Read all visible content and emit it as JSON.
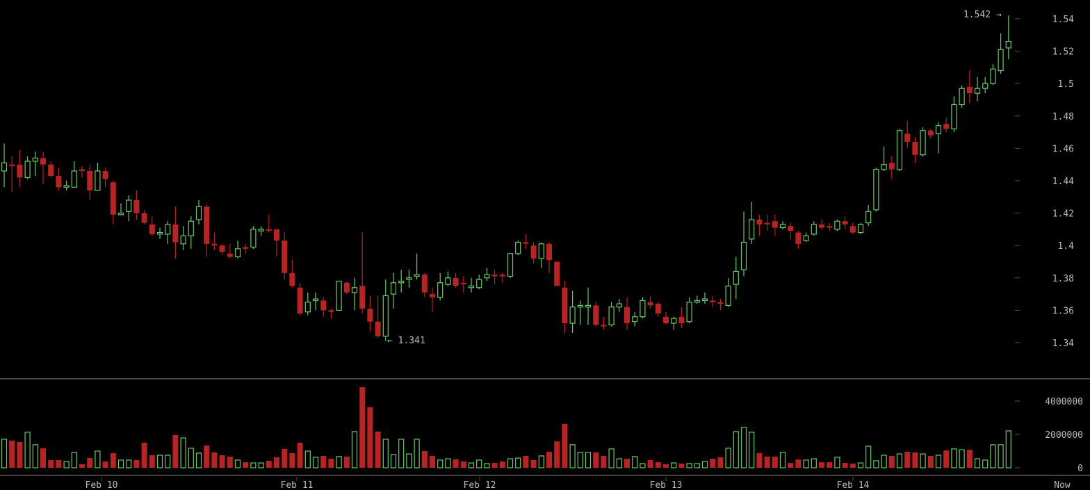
{
  "chart_data": {
    "type": "candlestick",
    "interval": "hourly",
    "x_labels": [
      "Feb 10",
      "Feb 11",
      "Feb 12",
      "Feb 13",
      "Feb 14",
      "Now"
    ],
    "price_axis": {
      "ticks": [
        "1.34",
        "1.36",
        "1.38",
        "1.4",
        "1.42",
        "1.44",
        "1.46",
        "1.48",
        "1.5",
        "1.52",
        "1.54"
      ],
      "range": [
        1.32,
        1.55
      ]
    },
    "volume_axis": {
      "ticks": [
        "0",
        "2000000",
        "4000000"
      ],
      "range": [
        0,
        5000000
      ]
    },
    "annotations": {
      "max_label": "1.542",
      "min_label": "1.341"
    },
    "colors": {
      "up": "#66cc66",
      "down": "#bb2222",
      "background": "#000000"
    },
    "ohlc": [
      [
        1.446,
        1.463,
        1.436,
        1.451
      ],
      [
        1.45,
        1.455,
        1.433,
        1.449
      ],
      [
        1.45,
        1.459,
        1.436,
        1.442
      ],
      [
        1.442,
        1.455,
        1.441,
        1.452
      ],
      [
        1.452,
        1.458,
        1.443,
        1.454
      ],
      [
        1.454,
        1.458,
        1.438,
        1.45
      ],
      [
        1.45,
        1.452,
        1.442,
        1.443
      ],
      [
        1.443,
        1.448,
        1.434,
        1.436
      ],
      [
        1.436,
        1.44,
        1.434,
        1.437
      ],
      [
        1.436,
        1.452,
        1.436,
        1.446
      ],
      [
        1.447,
        1.449,
        1.442,
        1.446
      ],
      [
        1.446,
        1.45,
        1.428,
        1.434
      ],
      [
        1.434,
        1.451,
        1.434,
        1.446
      ],
      [
        1.446,
        1.448,
        1.436,
        1.441
      ],
      [
        1.439,
        1.44,
        1.413,
        1.419
      ],
      [
        1.419,
        1.426,
        1.419,
        1.42
      ],
      [
        1.421,
        1.431,
        1.415,
        1.428
      ],
      [
        1.428,
        1.434,
        1.416,
        1.42
      ],
      [
        1.42,
        1.422,
        1.413,
        1.414
      ],
      [
        1.413,
        1.418,
        1.406,
        1.407
      ],
      [
        1.407,
        1.411,
        1.404,
        1.408
      ],
      [
        1.407,
        1.415,
        1.401,
        1.413
      ],
      [
        1.413,
        1.424,
        1.392,
        1.402
      ],
      [
        1.401,
        1.412,
        1.397,
        1.406
      ],
      [
        1.406,
        1.418,
        1.398,
        1.415
      ],
      [
        1.416,
        1.428,
        1.413,
        1.424
      ],
      [
        1.424,
        1.425,
        1.393,
        1.401
      ],
      [
        1.401,
        1.408,
        1.397,
        1.4
      ],
      [
        1.4,
        1.401,
        1.394,
        1.396
      ],
      [
        1.395,
        1.401,
        1.392,
        1.393
      ],
      [
        1.393,
        1.403,
        1.392,
        1.398
      ],
      [
        1.399,
        1.401,
        1.395,
        1.398
      ],
      [
        1.399,
        1.412,
        1.398,
        1.41
      ],
      [
        1.409,
        1.412,
        1.406,
        1.41
      ],
      [
        1.41,
        1.419,
        1.408,
        1.409
      ],
      [
        1.41,
        1.41,
        1.393,
        1.403
      ],
      [
        1.403,
        1.408,
        1.379,
        1.383
      ],
      [
        1.383,
        1.391,
        1.374,
        1.375
      ],
      [
        1.374,
        1.377,
        1.357,
        1.358
      ],
      [
        1.359,
        1.371,
        1.357,
        1.365
      ],
      [
        1.366,
        1.371,
        1.36,
        1.367
      ],
      [
        1.366,
        1.368,
        1.356,
        1.36
      ],
      [
        1.36,
        1.361,
        1.355,
        1.359
      ],
      [
        1.36,
        1.378,
        1.36,
        1.378
      ],
      [
        1.377,
        1.378,
        1.37,
        1.371
      ],
      [
        1.371,
        1.38,
        1.36,
        1.374
      ],
      [
        1.375,
        1.408,
        1.358,
        1.361
      ],
      [
        1.361,
        1.369,
        1.347,
        1.353
      ],
      [
        1.353,
        1.369,
        1.343,
        1.344
      ],
      [
        1.344,
        1.379,
        1.341,
        1.369
      ],
      [
        1.37,
        1.383,
        1.361,
        1.377
      ],
      [
        1.377,
        1.385,
        1.371,
        1.378
      ],
      [
        1.379,
        1.385,
        1.374,
        1.38
      ],
      [
        1.381,
        1.395,
        1.379,
        1.382
      ],
      [
        1.382,
        1.383,
        1.368,
        1.371
      ],
      [
        1.37,
        1.374,
        1.359,
        1.368
      ],
      [
        1.368,
        1.383,
        1.366,
        1.377
      ],
      [
        1.376,
        1.384,
        1.375,
        1.38
      ],
      [
        1.38,
        1.383,
        1.374,
        1.375
      ],
      [
        1.377,
        1.381,
        1.371,
        1.376
      ],
      [
        1.374,
        1.38,
        1.371,
        1.375
      ],
      [
        1.374,
        1.382,
        1.373,
        1.379
      ],
      [
        1.38,
        1.386,
        1.378,
        1.382
      ],
      [
        1.382,
        1.385,
        1.376,
        1.381
      ],
      [
        1.382,
        1.383,
        1.377,
        1.381
      ],
      [
        1.381,
        1.395,
        1.38,
        1.395
      ],
      [
        1.395,
        1.403,
        1.394,
        1.402
      ],
      [
        1.402,
        1.407,
        1.398,
        1.401
      ],
      [
        1.4,
        1.402,
        1.389,
        1.392
      ],
      [
        1.392,
        1.402,
        1.386,
        1.401
      ],
      [
        1.401,
        1.402,
        1.383,
        1.391
      ],
      [
        1.39,
        1.39,
        1.375,
        1.375
      ],
      [
        1.374,
        1.378,
        1.346,
        1.352
      ],
      [
        1.352,
        1.372,
        1.346,
        1.362
      ],
      [
        1.362,
        1.366,
        1.351,
        1.363
      ],
      [
        1.362,
        1.374,
        1.351,
        1.363
      ],
      [
        1.363,
        1.365,
        1.35,
        1.351
      ],
      [
        1.351,
        1.356,
        1.348,
        1.35
      ],
      [
        1.351,
        1.365,
        1.35,
        1.362
      ],
      [
        1.362,
        1.367,
        1.359,
        1.364
      ],
      [
        1.362,
        1.368,
        1.348,
        1.352
      ],
      [
        1.353,
        1.359,
        1.35,
        1.356
      ],
      [
        1.356,
        1.368,
        1.355,
        1.366
      ],
      [
        1.365,
        1.369,
        1.361,
        1.363
      ],
      [
        1.364,
        1.365,
        1.356,
        1.358
      ],
      [
        1.356,
        1.359,
        1.351,
        1.352
      ],
      [
        1.352,
        1.356,
        1.348,
        1.355
      ],
      [
        1.356,
        1.362,
        1.349,
        1.352
      ],
      [
        1.353,
        1.368,
        1.352,
        1.365
      ],
      [
        1.365,
        1.369,
        1.364,
        1.366
      ],
      [
        1.366,
        1.371,
        1.364,
        1.367
      ],
      [
        1.366,
        1.369,
        1.362,
        1.365
      ],
      [
        1.365,
        1.367,
        1.36,
        1.364
      ],
      [
        1.363,
        1.38,
        1.362,
        1.375
      ],
      [
        1.376,
        1.393,
        1.367,
        1.384
      ],
      [
        1.385,
        1.421,
        1.381,
        1.402
      ],
      [
        1.404,
        1.427,
        1.401,
        1.416
      ],
      [
        1.416,
        1.419,
        1.406,
        1.413
      ],
      [
        1.414,
        1.419,
        1.409,
        1.413
      ],
      [
        1.415,
        1.419,
        1.406,
        1.411
      ],
      [
        1.411,
        1.415,
        1.41,
        1.413
      ],
      [
        1.412,
        1.414,
        1.404,
        1.409
      ],
      [
        1.408,
        1.409,
        1.398,
        1.401
      ],
      [
        1.403,
        1.408,
        1.402,
        1.406
      ],
      [
        1.407,
        1.415,
        1.406,
        1.413
      ],
      [
        1.413,
        1.416,
        1.41,
        1.411
      ],
      [
        1.412,
        1.414,
        1.409,
        1.411
      ],
      [
        1.41,
        1.416,
        1.409,
        1.415
      ],
      [
        1.415,
        1.418,
        1.41,
        1.413
      ],
      [
        1.412,
        1.414,
        1.407,
        1.408
      ],
      [
        1.408,
        1.414,
        1.407,
        1.413
      ],
      [
        1.414,
        1.425,
        1.412,
        1.421
      ],
      [
        1.422,
        1.448,
        1.421,
        1.447
      ],
      [
        1.447,
        1.461,
        1.446,
        1.45
      ],
      [
        1.451,
        1.455,
        1.441,
        1.447
      ],
      [
        1.447,
        1.472,
        1.446,
        1.471
      ],
      [
        1.469,
        1.477,
        1.46,
        1.464
      ],
      [
        1.464,
        1.467,
        1.451,
        1.456
      ],
      [
        1.456,
        1.473,
        1.455,
        1.471
      ],
      [
        1.471,
        1.472,
        1.466,
        1.468
      ],
      [
        1.469,
        1.476,
        1.457,
        1.474
      ],
      [
        1.475,
        1.479,
        1.47,
        1.472
      ],
      [
        1.472,
        1.492,
        1.47,
        1.487
      ],
      [
        1.487,
        1.499,
        1.485,
        1.497
      ],
      [
        1.498,
        1.508,
        1.488,
        1.494
      ],
      [
        1.494,
        1.504,
        1.489,
        1.497
      ],
      [
        1.497,
        1.504,
        1.494,
        1.5
      ],
      [
        1.5,
        1.512,
        1.499,
        1.509
      ],
      [
        1.508,
        1.531,
        1.506,
        1.521
      ],
      [
        1.522,
        1.542,
        1.515,
        1.526
      ]
    ],
    "volume": [
      1710000,
      1630000,
      1540000,
      2130000,
      1380000,
      1170000,
      460000,
      460000,
      380000,
      920000,
      210000,
      580000,
      1000000,
      380000,
      880000,
      460000,
      460000,
      460000,
      1500000,
      750000,
      750000,
      750000,
      1960000,
      1790000,
      1170000,
      880000,
      1330000,
      920000,
      750000,
      670000,
      460000,
      330000,
      290000,
      290000,
      420000,
      630000,
      1130000,
      880000,
      1500000,
      1000000,
      630000,
      710000,
      540000,
      670000,
      670000,
      2170000,
      4830000,
      3630000,
      2170000,
      1710000,
      790000,
      1710000,
      830000,
      1710000,
      1000000,
      710000,
      460000,
      540000,
      500000,
      380000,
      290000,
      460000,
      250000,
      290000,
      380000,
      540000,
      580000,
      710000,
      460000,
      710000,
      960000,
      1580000,
      2630000,
      1380000,
      920000,
      920000,
      920000,
      710000,
      1130000,
      540000,
      540000,
      670000,
      250000,
      460000,
      330000,
      210000,
      290000,
      250000,
      250000,
      250000,
      380000,
      540000,
      630000,
      1170000,
      2170000,
      2420000,
      2130000,
      880000,
      670000,
      670000,
      920000,
      290000,
      500000,
      460000,
      540000,
      330000,
      330000,
      630000,
      290000,
      250000,
      290000,
      1290000,
      420000,
      750000,
      710000,
      830000,
      960000,
      920000,
      830000,
      710000,
      750000,
      1040000,
      1130000,
      1080000,
      1080000,
      540000,
      460000,
      1380000,
      1380000,
      2210000
    ]
  }
}
